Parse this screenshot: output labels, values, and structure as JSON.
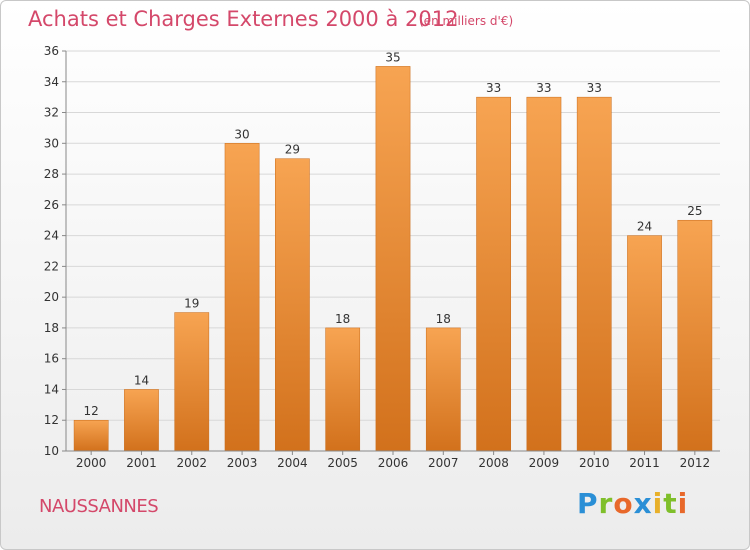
{
  "header": {
    "title": "Achats et Charges Externes 2000 à 2012",
    "subtitle": "(en milliers d'€)"
  },
  "commune": "NAUSSANNES",
  "logo": {
    "text": "Proxiti",
    "letter_colors": [
      "#2a8fd6",
      "#7fbf2a",
      "#e8682a",
      "#2a8fd6",
      "#e8b02a",
      "#7fbf2a",
      "#e8682a"
    ]
  },
  "colors": {
    "bar_top": "#f7a452",
    "bar_bottom": "#d2711c",
    "grid": "#d8d8d8",
    "text_accent": "#d4486a"
  },
  "chart_data": {
    "type": "bar",
    "title": "Achats et Charges Externes 2000 à 2012",
    "subtitle": "(en milliers d'€)",
    "xlabel": "",
    "ylabel": "",
    "categories": [
      "2000",
      "2001",
      "2002",
      "2003",
      "2004",
      "2005",
      "2006",
      "2007",
      "2008",
      "2009",
      "2010",
      "2011",
      "2012"
    ],
    "values": [
      12,
      14,
      19,
      30,
      29,
      18,
      35,
      18,
      33,
      33,
      33,
      24,
      25
    ],
    "ylim": [
      10,
      36
    ],
    "yticks": [
      10,
      12,
      14,
      16,
      18,
      20,
      22,
      24,
      26,
      28,
      30,
      32,
      34,
      36
    ],
    "grid": true
  }
}
